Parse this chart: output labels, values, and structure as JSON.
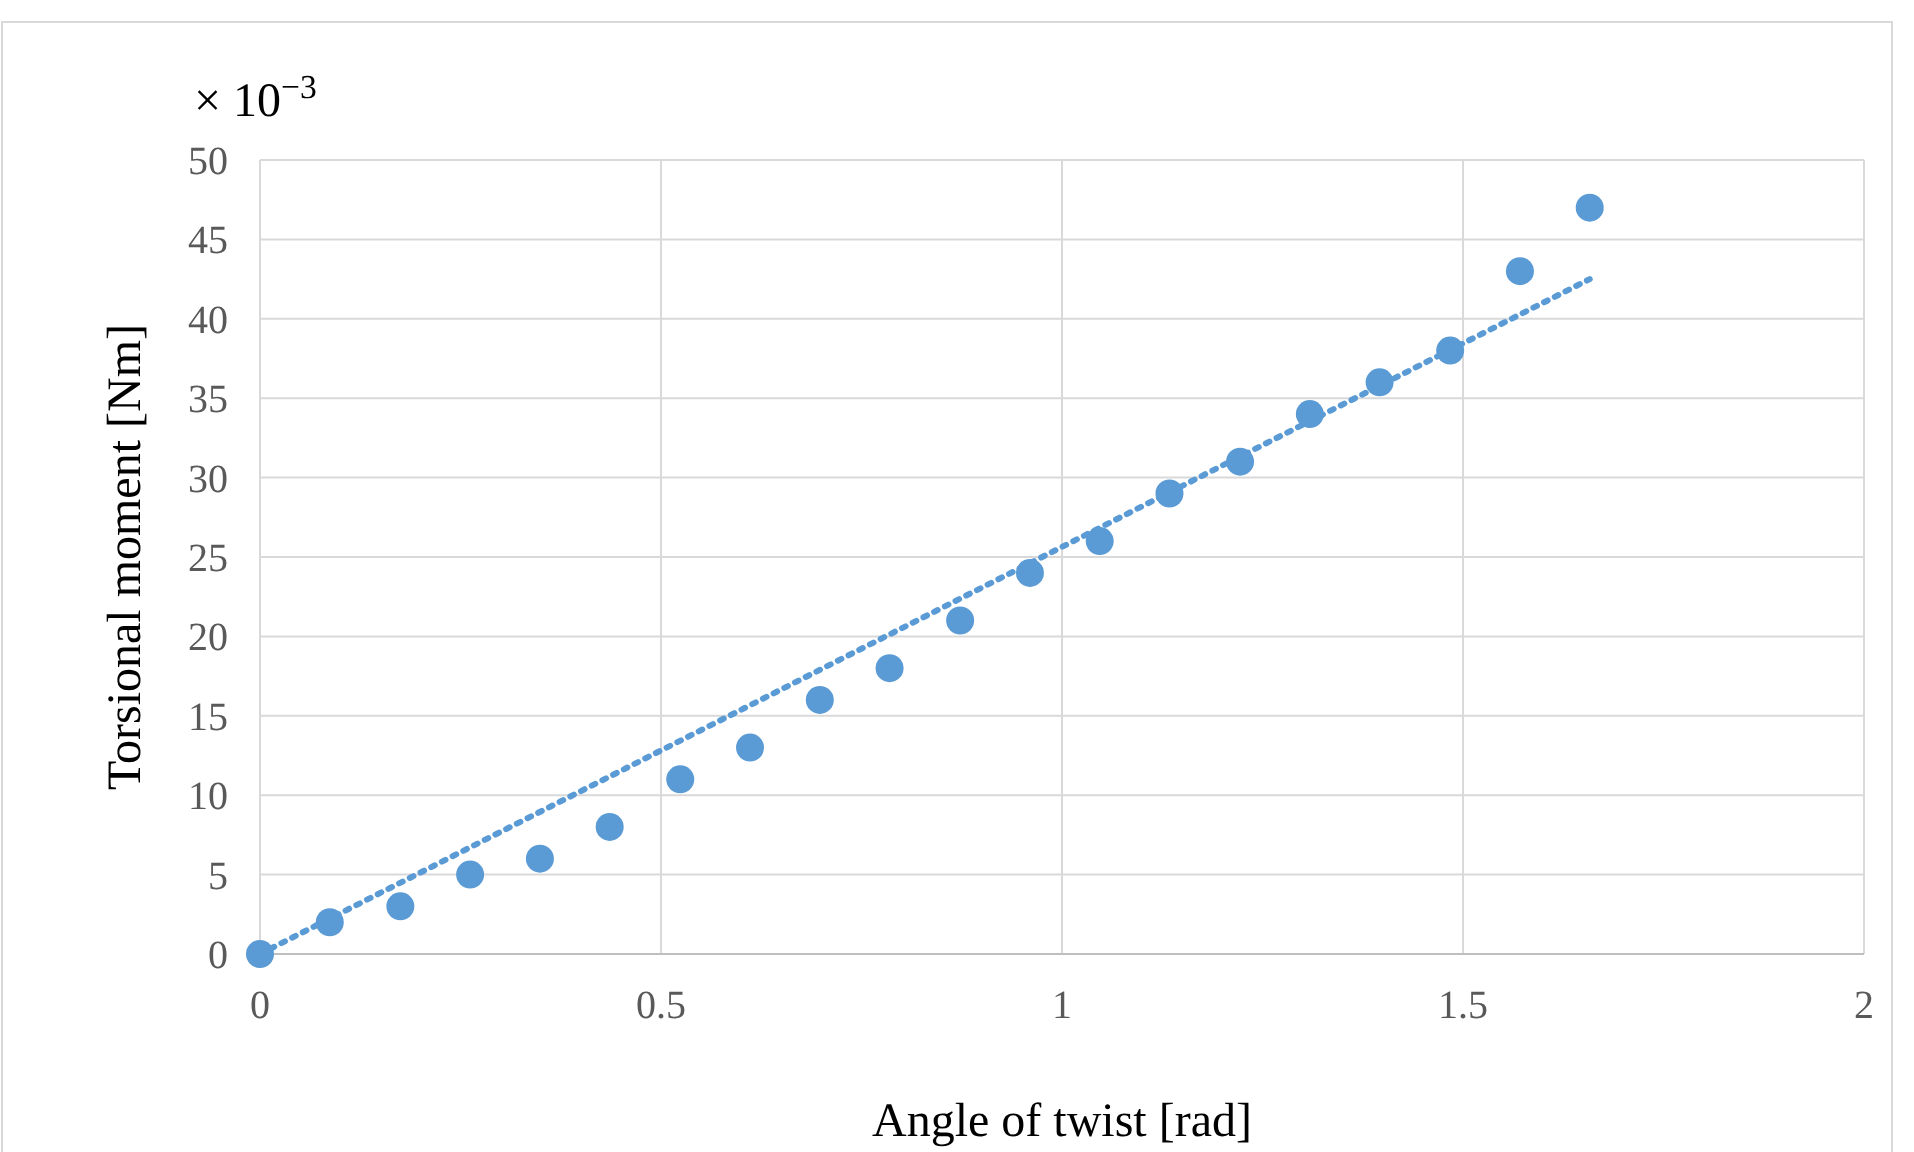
{
  "chart_data": {
    "type": "scatter",
    "xlabel": "Angle of twist [rad]",
    "ylabel": "Torsional moment [Nm]",
    "annotations": [
      "× 10$^{−3}$"
    ],
    "xlim": [
      0,
      2
    ],
    "xticks": [
      0,
      0.5,
      1,
      1.5,
      2
    ],
    "ylim": [
      0,
      50
    ],
    "yticks": [
      0,
      5,
      10,
      15,
      20,
      25,
      30,
      35,
      40,
      45,
      50
    ],
    "grid": true,
    "marker": "circle",
    "series": [
      {
        "color": "#5b9bd5",
        "x": [
          0,
          0.087,
          0.175,
          0.262,
          0.349,
          0.436,
          0.524,
          0.611,
          0.698,
          0.785,
          0.873,
          0.96,
          1.047,
          1.134,
          1.222,
          1.309,
          1.396,
          1.484,
          1.571,
          1.658
        ],
        "values": [
          0,
          2,
          3,
          5,
          6,
          8,
          11,
          13,
          16,
          18,
          21,
          24,
          26,
          29,
          31,
          34,
          36,
          38,
          43,
          47
        ]
      },
      {
        "type": "line",
        "color": "#5b9bd5",
        "line_style": "dotted",
        "marker": "none",
        "x": [
          0,
          1.658
        ],
        "values": [
          0,
          42.5
        ]
      }
    ]
  }
}
